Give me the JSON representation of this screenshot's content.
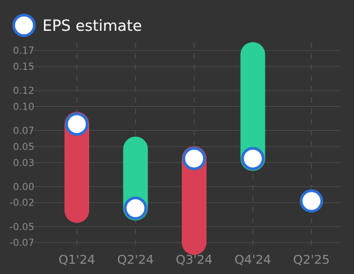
{
  "chart_data": {
    "type": "bar",
    "categories": [
      "Q1'24",
      "Q2'24",
      "Q3'24",
      "Q4'24",
      "Q2'25"
    ],
    "y_ticks": [
      "0.17",
      "0.15",
      "0.12",
      "0.10",
      "0.07",
      "0.05",
      "0.03",
      "0.00",
      "-0.02",
      "-0.05",
      "-0.07"
    ],
    "ylim": [
      -0.075,
      0.18
    ],
    "legend": {
      "label": "EPS estimate",
      "position": "top-left"
    },
    "estimates": [
      0.078,
      -0.027,
      0.035,
      0.035,
      -0.018
    ],
    "actuals": [
      -0.03,
      0.047,
      -0.07,
      0.165,
      null
    ],
    "grid": true,
    "colors": {
      "background": "#333333",
      "beat": "#2ad097",
      "miss": "#d93f55",
      "marker_fill": "#ffffff",
      "marker_stroke": "#2b6fd6",
      "grid": "#4a4a4a",
      "text": "#8c8c8c"
    }
  }
}
